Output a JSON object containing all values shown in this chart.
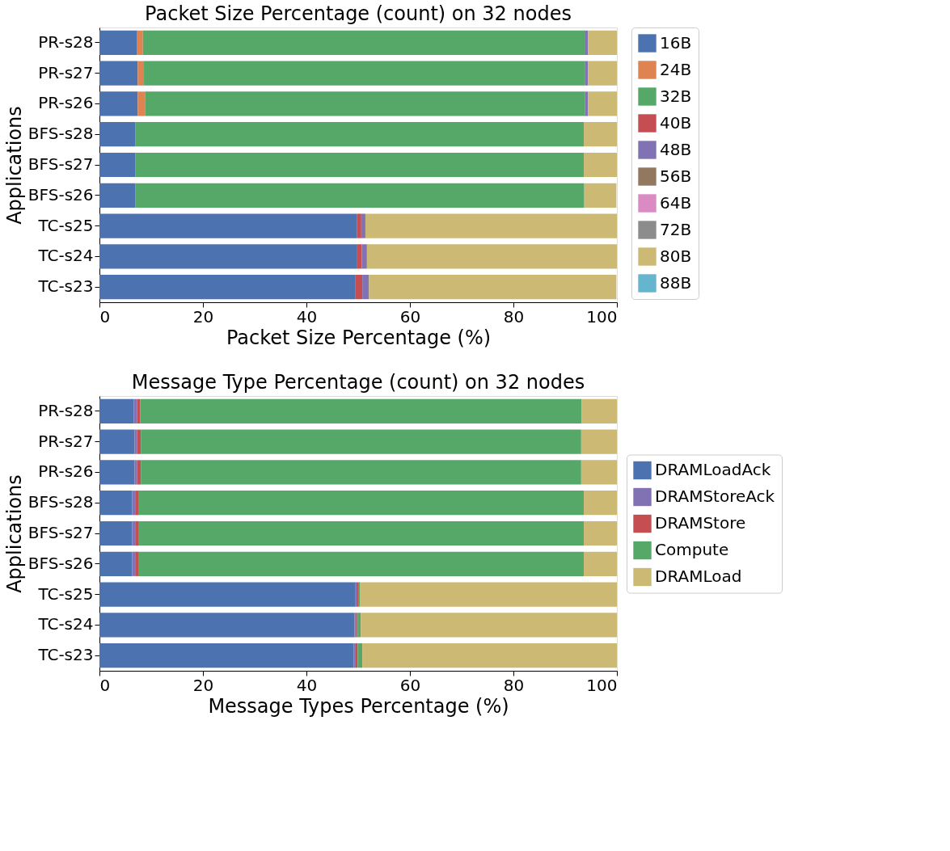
{
  "chart_data": [
    {
      "type": "bar",
      "orientation": "horizontal",
      "stacked": true,
      "title": "Packet Size Percentage (count) on 32 nodes",
      "xlabel": "Packet Size Percentage (%)",
      "ylabel": "Applications",
      "categories": [
        "PR-s28",
        "PR-s27",
        "PR-s26",
        "BFS-s28",
        "BFS-s27",
        "BFS-s26",
        "TC-s25",
        "TC-s24",
        "TC-s23"
      ],
      "xlim": [
        0,
        100
      ],
      "xticks": [
        0,
        20,
        40,
        60,
        80,
        100
      ],
      "grid": false,
      "legend": "top right",
      "series": [
        {
          "name": "16B",
          "color": "#4c72b0",
          "values": [
            7.3,
            7.4,
            7.4,
            6.9,
            6.9,
            6.9,
            49.8,
            49.7,
            49.5
          ]
        },
        {
          "name": "24B",
          "color": "#dd8452",
          "values": [
            1.1,
            1.2,
            1.4,
            0,
            0,
            0,
            0,
            0,
            0
          ]
        },
        {
          "name": "32B",
          "color": "#55a868",
          "values": [
            85.5,
            85.2,
            85.0,
            86.7,
            86.7,
            86.8,
            0,
            0,
            null
          ]
        },
        {
          "name": "40B",
          "color": "#c44e52",
          "values": [
            0,
            0.1,
            0,
            0,
            0,
            0,
            0.8,
            1.0,
            1.3
          ]
        },
        {
          "name": "48B",
          "color": "#8172b3",
          "values": [
            0.5,
            0.5,
            0.6,
            0,
            0,
            null,
            0.8,
            1.0,
            1.3
          ]
        },
        {
          "name": "56B",
          "color": "#937860",
          "values": [
            0,
            0,
            0,
            0,
            0,
            0,
            0,
            0,
            0
          ]
        },
        {
          "name": "64B",
          "color": "#da8bc3",
          "values": [
            0,
            0,
            0,
            0,
            0,
            0,
            0,
            0,
            0
          ]
        },
        {
          "name": "72B",
          "color": "#8c8c8c",
          "values": [
            0,
            0,
            0,
            0,
            0,
            0,
            0,
            0,
            0
          ]
        },
        {
          "name": "80B",
          "color": "#ccb974",
          "values": [
            5.6,
            5.6,
            5.6,
            6.4,
            6.4,
            6.2,
            48.6,
            48.3,
            47.8
          ]
        },
        {
          "name": "88B",
          "color": "#64b5cd",
          "values": [
            0,
            0,
            0,
            0,
            0,
            0,
            0,
            0,
            0
          ]
        }
      ]
    },
    {
      "type": "bar",
      "orientation": "horizontal",
      "stacked": true,
      "title": "Message Type Percentage (count) on 32 nodes",
      "xlabel": "Message Types Percentage (%)",
      "ylabel": "Applications",
      "categories": [
        "PR-s28",
        "PR-s27",
        "PR-s26",
        "BFS-s28",
        "BFS-s27",
        "BFS-s26",
        "TC-s25",
        "TC-s24",
        "TC-s23"
      ],
      "xlim": [
        0,
        100
      ],
      "xticks": [
        0,
        20,
        40,
        60,
        80,
        100
      ],
      "grid": false,
      "legend": "right",
      "series": [
        {
          "name": "DRAMLoadAck",
          "color": "#4c72b0",
          "values": [
            6.6,
            6.8,
            6.8,
            6.3,
            6.3,
            6.3,
            49.5,
            49.3,
            49.1
          ]
        },
        {
          "name": "DRAMStoreAck",
          "color": "#8172b3",
          "values": [
            0.7,
            0.5,
            0.5,
            0.6,
            0.6,
            0.6,
            0.2,
            0.3,
            0.3
          ]
        },
        {
          "name": "DRAMStore",
          "color": "#c44e52",
          "values": [
            0.6,
            0.7,
            0.7,
            0.6,
            0.6,
            0.6,
            0.3,
            0.3,
            0.5
          ]
        },
        {
          "name": "Compute",
          "color": "#55a868",
          "values": [
            85.3,
            85.1,
            85.1,
            86.1,
            86.1,
            86.1,
            0.4,
            0.6,
            0.9
          ]
        },
        {
          "name": "DRAMLoad",
          "color": "#ccb974",
          "values": [
            6.8,
            6.9,
            6.9,
            6.4,
            6.4,
            6.4,
            49.6,
            49.5,
            49.2
          ]
        }
      ]
    }
  ]
}
